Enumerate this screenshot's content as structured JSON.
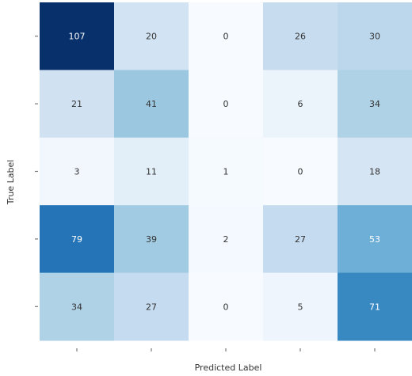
{
  "chart_data": {
    "type": "heatmap",
    "xlabel": "Predicted Label",
    "ylabel": "True Label",
    "x_tick_labels": [
      "",
      "",
      "",
      "",
      ""
    ],
    "y_tick_labels": [
      "",
      "",
      "",
      "",
      ""
    ],
    "matrix": [
      [
        107,
        20,
        0,
        26,
        30
      ],
      [
        21,
        41,
        0,
        6,
        34
      ],
      [
        3,
        11,
        1,
        0,
        18
      ],
      [
        79,
        39,
        2,
        27,
        53
      ],
      [
        34,
        27,
        0,
        5,
        71
      ]
    ],
    "value_range": [
      0,
      107
    ],
    "colormap": "Blues",
    "colors": {
      "low": "#f7fbff",
      "high": "#08306b",
      "light_text": "#ffffff",
      "dark_text": "#333333",
      "tick": "#777777"
    }
  }
}
